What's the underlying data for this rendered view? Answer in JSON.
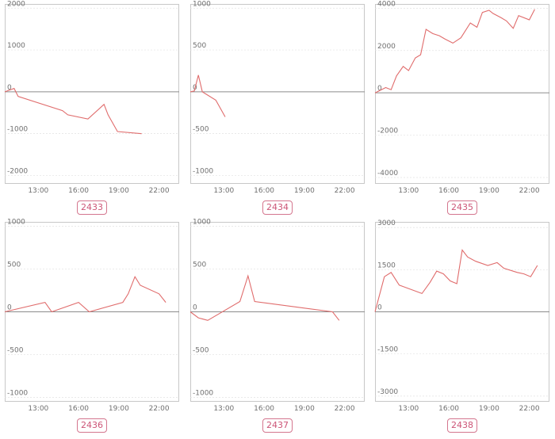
{
  "colors": {
    "line": "#e06c6c",
    "badge": "#cc5577"
  },
  "chart_data": [
    {
      "type": "line",
      "label": "2433",
      "ylim": [
        -2200,
        2100
      ],
      "yticks": [
        2000,
        1000,
        0,
        -1000,
        -2000
      ],
      "xlim": [
        10.5,
        23.5
      ],
      "xticks": [
        "13:00",
        "16:00",
        "19:00",
        "22:00"
      ],
      "xtick_values": [
        13,
        16,
        19,
        22
      ],
      "series": [
        {
          "x": [
            10.5,
            11.2,
            11.5,
            14.8,
            15.2,
            16.7,
            17.9,
            18.2,
            18.9,
            20.7
          ],
          "y": [
            0,
            80,
            -110,
            -450,
            -550,
            -650,
            -300,
            -550,
            -950,
            -1000
          ]
        }
      ]
    },
    {
      "type": "line",
      "label": "2434",
      "ylim": [
        -1100,
        1050
      ],
      "yticks": [
        1000,
        500,
        0,
        -500,
        -1000
      ],
      "xlim": [
        10.5,
        23.5
      ],
      "xticks": [
        "13:00",
        "16:00",
        "19:00",
        "22:00"
      ],
      "xtick_values": [
        13,
        16,
        19,
        22
      ],
      "series": [
        {
          "x": [
            10.5,
            10.8,
            11.1,
            11.4,
            12.4,
            13.1
          ],
          "y": [
            0,
            10,
            200,
            0,
            -100,
            -300
          ]
        }
      ]
    },
    {
      "type": "line",
      "label": "2435",
      "ylim": [
        -4300,
        4200
      ],
      "yticks": [
        4000,
        2000,
        0,
        -2000,
        -4000
      ],
      "xlim": [
        10.5,
        23.5
      ],
      "xticks": [
        "13:00",
        "16:00",
        "19:00",
        "22:00"
      ],
      "xtick_values": [
        13,
        16,
        19,
        22
      ],
      "series": [
        {
          "x": [
            10.5,
            11.3,
            11.7,
            12.1,
            12.6,
            13.0,
            13.5,
            13.9,
            14.3,
            14.8,
            15.3,
            15.7,
            16.3,
            16.9,
            17.6,
            18.1,
            18.5,
            19.0,
            19.3,
            19.9,
            20.3,
            20.8,
            21.2,
            22.0,
            22.4
          ],
          "y": [
            0,
            250,
            150,
            800,
            1250,
            1050,
            1650,
            1800,
            3000,
            2800,
            2700,
            2550,
            2350,
            2600,
            3300,
            3100,
            3800,
            3900,
            3750,
            3550,
            3400,
            3050,
            3650,
            3450,
            3950
          ]
        }
      ]
    },
    {
      "type": "line",
      "label": "2436",
      "ylim": [
        -1050,
        1050
      ],
      "yticks": [
        1000,
        500,
        0,
        -500,
        -1000
      ],
      "xlim": [
        10.5,
        23.5
      ],
      "xticks": [
        "13:00",
        "16:00",
        "19:00",
        "22:00"
      ],
      "xtick_values": [
        13,
        16,
        19,
        22
      ],
      "series": [
        {
          "x": [
            10.5,
            13.5,
            14.0,
            16.0,
            16.8,
            19.3,
            19.7,
            20.2,
            20.6,
            22.0,
            22.5
          ],
          "y": [
            0,
            110,
            0,
            110,
            0,
            110,
            210,
            410,
            310,
            210,
            110
          ]
        }
      ]
    },
    {
      "type": "line",
      "label": "2437",
      "ylim": [
        -1050,
        1050
      ],
      "yticks": [
        1000,
        500,
        0,
        -500,
        -1000
      ],
      "xlim": [
        10.5,
        23.5
      ],
      "xticks": [
        "13:00",
        "16:00",
        "19:00",
        "22:00"
      ],
      "xtick_values": [
        13,
        16,
        19,
        22
      ],
      "series": [
        {
          "x": [
            10.5,
            11.1,
            11.8,
            14.2,
            14.8,
            15.3,
            21.1,
            21.6
          ],
          "y": [
            0,
            -70,
            -100,
            120,
            420,
            120,
            0,
            -100
          ]
        }
      ]
    },
    {
      "type": "line",
      "label": "2438",
      "ylim": [
        -3200,
        3200
      ],
      "yticks": [
        3000,
        1500,
        0,
        -1500,
        -3000
      ],
      "xlim": [
        10.5,
        23.5
      ],
      "xticks": [
        "13:00",
        "16:00",
        "19:00",
        "22:00"
      ],
      "xtick_values": [
        13,
        16,
        19,
        22
      ],
      "series": [
        {
          "x": [
            10.5,
            11.2,
            11.7,
            12.3,
            14.0,
            14.6,
            15.1,
            15.6,
            16.1,
            16.6,
            17.0,
            17.4,
            18.0,
            18.9,
            19.6,
            20.1,
            21.1,
            21.6,
            22.1,
            22.6
          ],
          "y": [
            0,
            1250,
            1400,
            950,
            650,
            1050,
            1450,
            1350,
            1100,
            1000,
            2200,
            1950,
            1800,
            1650,
            1750,
            1550,
            1400,
            1350,
            1250,
            1650
          ]
        }
      ]
    }
  ]
}
